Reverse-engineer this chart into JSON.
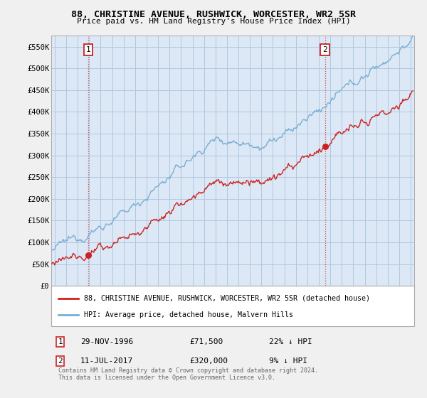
{
  "title": "88, CHRISTINE AVENUE, RUSHWICK, WORCESTER, WR2 5SR",
  "subtitle": "Price paid vs. HM Land Registry's House Price Index (HPI)",
  "ylim": [
    0,
    575000
  ],
  "yticks": [
    0,
    50000,
    100000,
    150000,
    200000,
    250000,
    300000,
    350000,
    400000,
    450000,
    500000,
    550000
  ],
  "ytick_labels": [
    "£0",
    "£50K",
    "£100K",
    "£150K",
    "£200K",
    "£250K",
    "£300K",
    "£350K",
    "£400K",
    "£450K",
    "£500K",
    "£550K"
  ],
  "hpi_color": "#7aafd4",
  "price_color": "#cc2222",
  "marker1_date_x": 1996.91,
  "marker1_price": 71500,
  "marker2_date_x": 2017.53,
  "marker2_price": 320000,
  "legend_line1": "88, CHRISTINE AVENUE, RUSHWICK, WORCESTER, WR2 5SR (detached house)",
  "legend_line2": "HPI: Average price, detached house, Malvern Hills",
  "footnote": "Contains HM Land Registry data © Crown copyright and database right 2024.\nThis data is licensed under the Open Government Licence v3.0.",
  "bg_color": "#f0f0f0",
  "plot_bg_color": "#dce8f5",
  "grid_color": "#b0c8e0",
  "xmin": 1993.7,
  "xmax": 2025.3,
  "row1_num": "1",
  "row1_date": "29-NOV-1996",
  "row1_price": "£71,500",
  "row1_hpi": "22% ↓ HPI",
  "row2_num": "2",
  "row2_date": "11-JUL-2017",
  "row2_price": "£320,000",
  "row2_hpi": "9% ↓ HPI"
}
